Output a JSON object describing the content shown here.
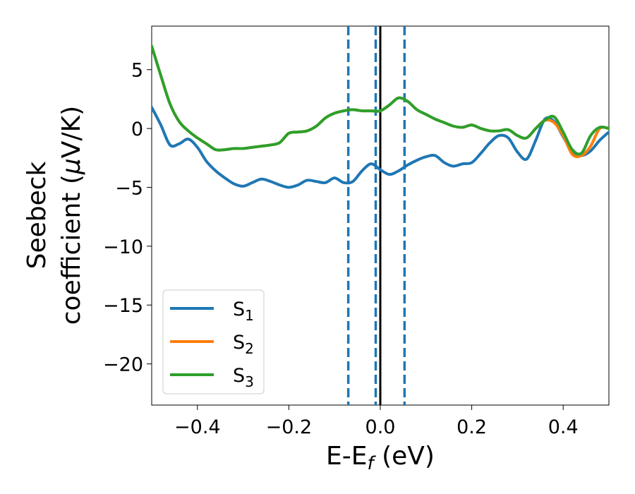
{
  "chart_data": {
    "type": "line",
    "xlabel": {
      "main": "E-E",
      "sub": "f",
      "suffix": " (eV)"
    },
    "ylabel": {
      "line1": "Seebeck",
      "line2_prefix": "coefficient  (",
      "mu": "μ",
      "line2_suffix": "V/K)"
    },
    "xlim": [
      -0.5,
      0.5
    ],
    "ylim": [
      -23.5,
      8.7
    ],
    "xticks": [
      -0.4,
      -0.2,
      0.0,
      0.2,
      0.4
    ],
    "xtick_labels": [
      "−0.4",
      "−0.2",
      "0.0",
      "0.2",
      "0.4"
    ],
    "yticks": [
      5,
      0,
      -5,
      -10,
      -15,
      -20
    ],
    "ytick_labels": [
      "5",
      "0",
      "−5",
      "−10",
      "−15",
      "−20"
    ],
    "vlines": [
      {
        "x": -0.07,
        "style": "dashed",
        "color": "#1f77b4"
      },
      {
        "x": -0.01,
        "style": "dashed",
        "color": "#1f77b4"
      },
      {
        "x": 0.0,
        "style": "solid",
        "color": "#000000"
      },
      {
        "x": 0.053,
        "style": "dashed",
        "color": "#1f77b4"
      }
    ],
    "legend_position": "lower-left",
    "x": [
      -0.5,
      -0.48,
      -0.46,
      -0.44,
      -0.42,
      -0.4,
      -0.38,
      -0.36,
      -0.34,
      -0.32,
      -0.3,
      -0.28,
      -0.26,
      -0.24,
      -0.22,
      -0.2,
      -0.18,
      -0.16,
      -0.14,
      -0.12,
      -0.1,
      -0.08,
      -0.06,
      -0.04,
      -0.02,
      0.0,
      0.02,
      0.04,
      0.06,
      0.08,
      0.1,
      0.12,
      0.14,
      0.16,
      0.18,
      0.2,
      0.22,
      0.24,
      0.26,
      0.28,
      0.3,
      0.32,
      0.34,
      0.36,
      0.38,
      0.4,
      0.42,
      0.44,
      0.46,
      0.48,
      0.5
    ],
    "series": [
      {
        "name": "S",
        "sub": "1",
        "color": "#1f77b4",
        "values": [
          1.8,
          0.3,
          -1.4,
          -1.3,
          -0.9,
          -1.6,
          -2.8,
          -3.6,
          -4.2,
          -4.7,
          -4.9,
          -4.6,
          -4.3,
          -4.5,
          -4.8,
          -5.0,
          -4.8,
          -4.4,
          -4.5,
          -4.6,
          -4.2,
          -4.6,
          -4.5,
          -3.6,
          -3.0,
          -3.5,
          -3.9,
          -3.6,
          -3.1,
          -2.7,
          -2.4,
          -2.3,
          -2.9,
          -3.2,
          -3.0,
          -2.9,
          -2.1,
          -1.2,
          -0.6,
          -0.8,
          -2.0,
          -2.6,
          -1.0,
          0.8,
          0.6,
          -0.7,
          -2.0,
          -2.3,
          -1.9,
          -1.0,
          -0.3
        ]
      },
      {
        "name": "S",
        "sub": "2",
        "color": "#ff7f0e",
        "values": [
          7.0,
          4.5,
          2.1,
          0.6,
          -0.2,
          -0.8,
          -1.3,
          -1.8,
          -1.8,
          -1.7,
          -1.7,
          -1.6,
          -1.5,
          -1.4,
          -1.2,
          -0.4,
          -0.3,
          -0.2,
          0.2,
          0.9,
          1.3,
          1.5,
          1.6,
          1.5,
          1.5,
          1.5,
          2.0,
          2.6,
          2.3,
          1.6,
          1.2,
          0.8,
          0.5,
          0.2,
          0.1,
          0.3,
          0.0,
          -0.2,
          -0.2,
          -0.1,
          -0.6,
          -0.8,
          0.0,
          0.7,
          0.5,
          -0.6,
          -2.2,
          -2.3,
          -1.5,
          0.0,
          0.0
        ]
      },
      {
        "name": "S",
        "sub": "3",
        "color": "#2ca02c",
        "values": [
          7.0,
          4.5,
          2.1,
          0.6,
          -0.2,
          -0.8,
          -1.3,
          -1.8,
          -1.8,
          -1.7,
          -1.7,
          -1.6,
          -1.5,
          -1.4,
          -1.2,
          -0.4,
          -0.3,
          -0.2,
          0.2,
          0.9,
          1.3,
          1.5,
          1.6,
          1.5,
          1.5,
          1.5,
          2.0,
          2.6,
          2.3,
          1.6,
          1.2,
          0.8,
          0.5,
          0.2,
          0.1,
          0.3,
          0.0,
          -0.2,
          -0.2,
          -0.1,
          -0.6,
          -0.8,
          0.0,
          0.7,
          1.0,
          -0.3,
          -1.8,
          -2.1,
          -0.6,
          0.1,
          0.0
        ]
      }
    ]
  }
}
